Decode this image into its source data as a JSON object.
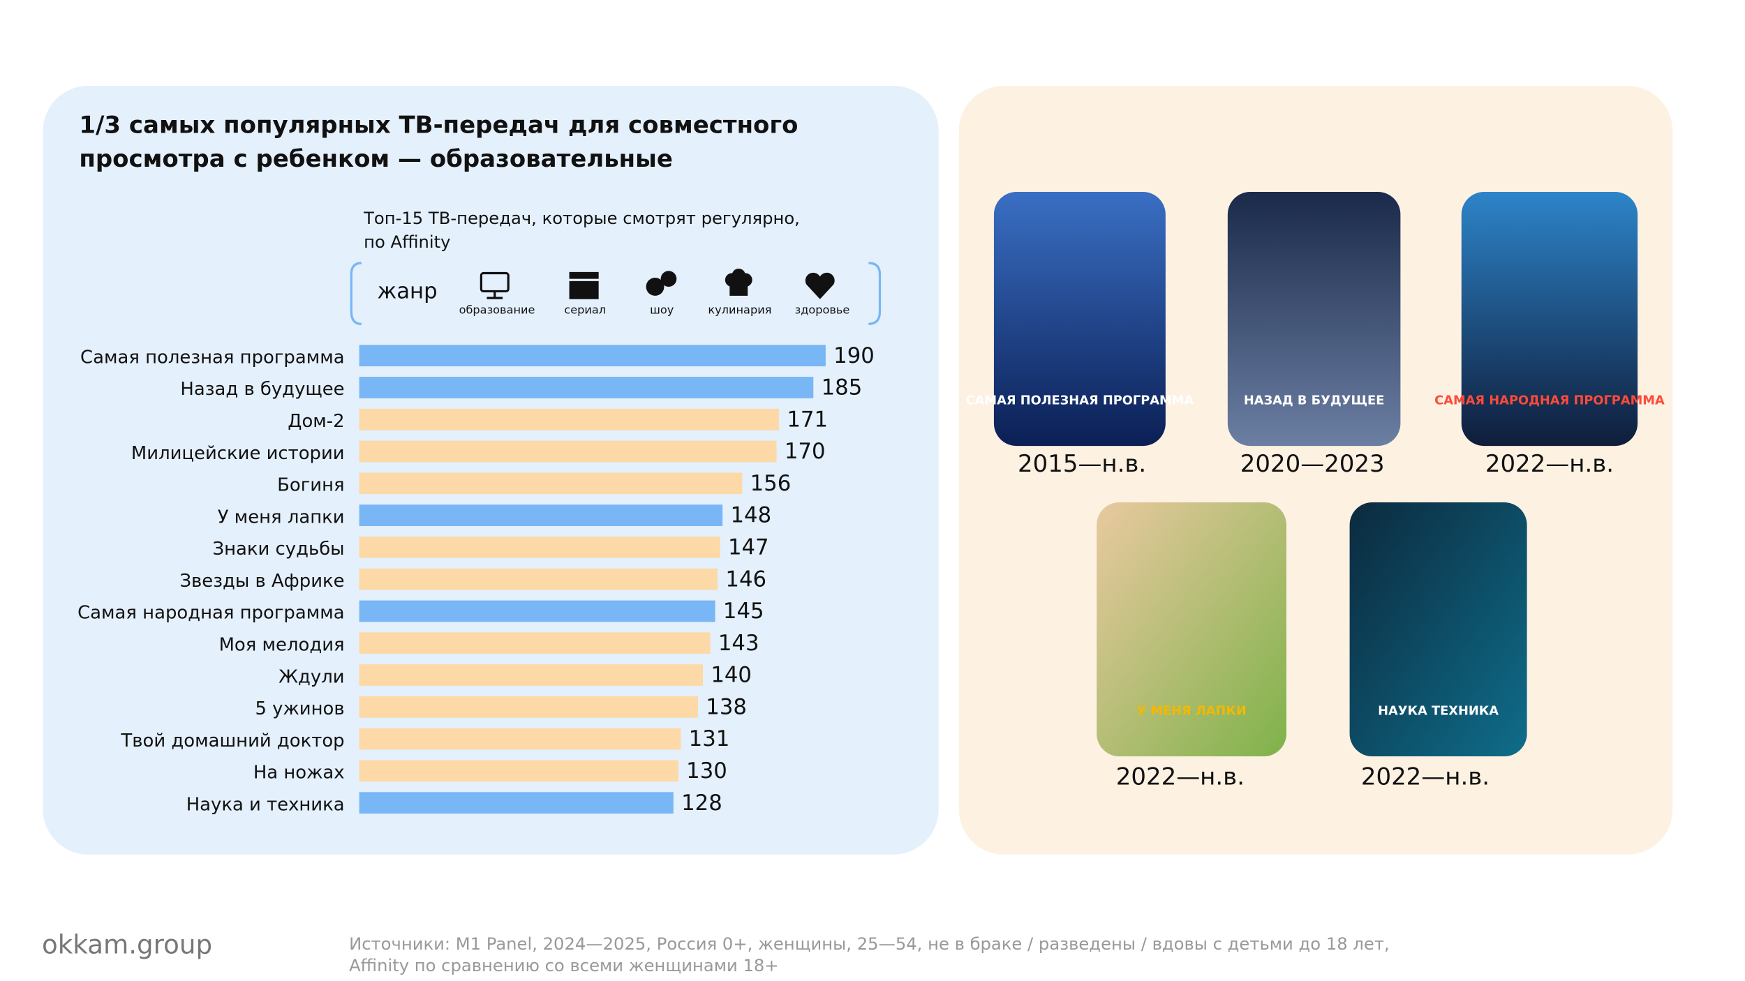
{
  "header": {
    "title_lines": [
      "1/3 самых популярных ТВ-передач для совместного",
      "просмотра с ребенком — образовательные"
    ],
    "subtitle_lines": [
      "Топ-15 ТВ-передач, которые смотрят регулярно,",
      "по Affinity"
    ]
  },
  "genre_legend": {
    "label": "жанр",
    "items": [
      "образование",
      "сериал",
      "шоу",
      "кулинария",
      "здоровье"
    ]
  },
  "chart_data": {
    "type": "hbar",
    "categories": [
      "Самая полезная программа",
      "Назад в будущее",
      "Дом-2",
      "Милицейские истории",
      "Богиня",
      "У меня лапки",
      "Знаки судьбы",
      "Звезды в Африке",
      "Самая народная программа",
      "Моя мелодия",
      "Ждули",
      "5 ужинов",
      "Твой домашний доктор",
      "На ножах",
      "Наука и техника"
    ],
    "values": [
      190,
      185,
      171,
      170,
      156,
      148,
      147,
      146,
      145,
      143,
      140,
      138,
      131,
      130,
      128
    ],
    "colors": [
      "#78b6f6",
      "#78b6f6",
      "#fcd9a6",
      "#fcd9a6",
      "#fcd9a6",
      "#78b6f6",
      "#fcd9a6",
      "#fcd9a6",
      "#78b6f6",
      "#fcd9a6",
      "#fcd9a6",
      "#fcd9a6",
      "#fcd9a6",
      "#fcd9a6",
      "#78b6f6"
    ],
    "xlim": [
      0,
      190
    ]
  },
  "posters": [
    {
      "title": "САМАЯ ПОЛЕЗНАЯ ПРОГРАММА",
      "years": "2015—н.в."
    },
    {
      "title": "НАЗАД В БУДУЩЕЕ",
      "years": "2020—2023"
    },
    {
      "title": "САМАЯ НАРОДНАЯ ПРОГРАММА",
      "years": "2022—н.в."
    },
    {
      "title": "У МЕНЯ ЛАПКИ",
      "years": "2022—н.в."
    },
    {
      "title": "НАУКА ТЕХНИКА",
      "years": "2022—н.в."
    }
  ],
  "footer": {
    "brand": "okkam.group",
    "source_lines": [
      "Источники: M1 Panel, 2024—2025, Россия 0+, женщины, 25—54, не в браке / разведены / вдовы с детьми до 18 лет,",
      "Affinity по сравнению со всеми женщинами 18+"
    ]
  }
}
